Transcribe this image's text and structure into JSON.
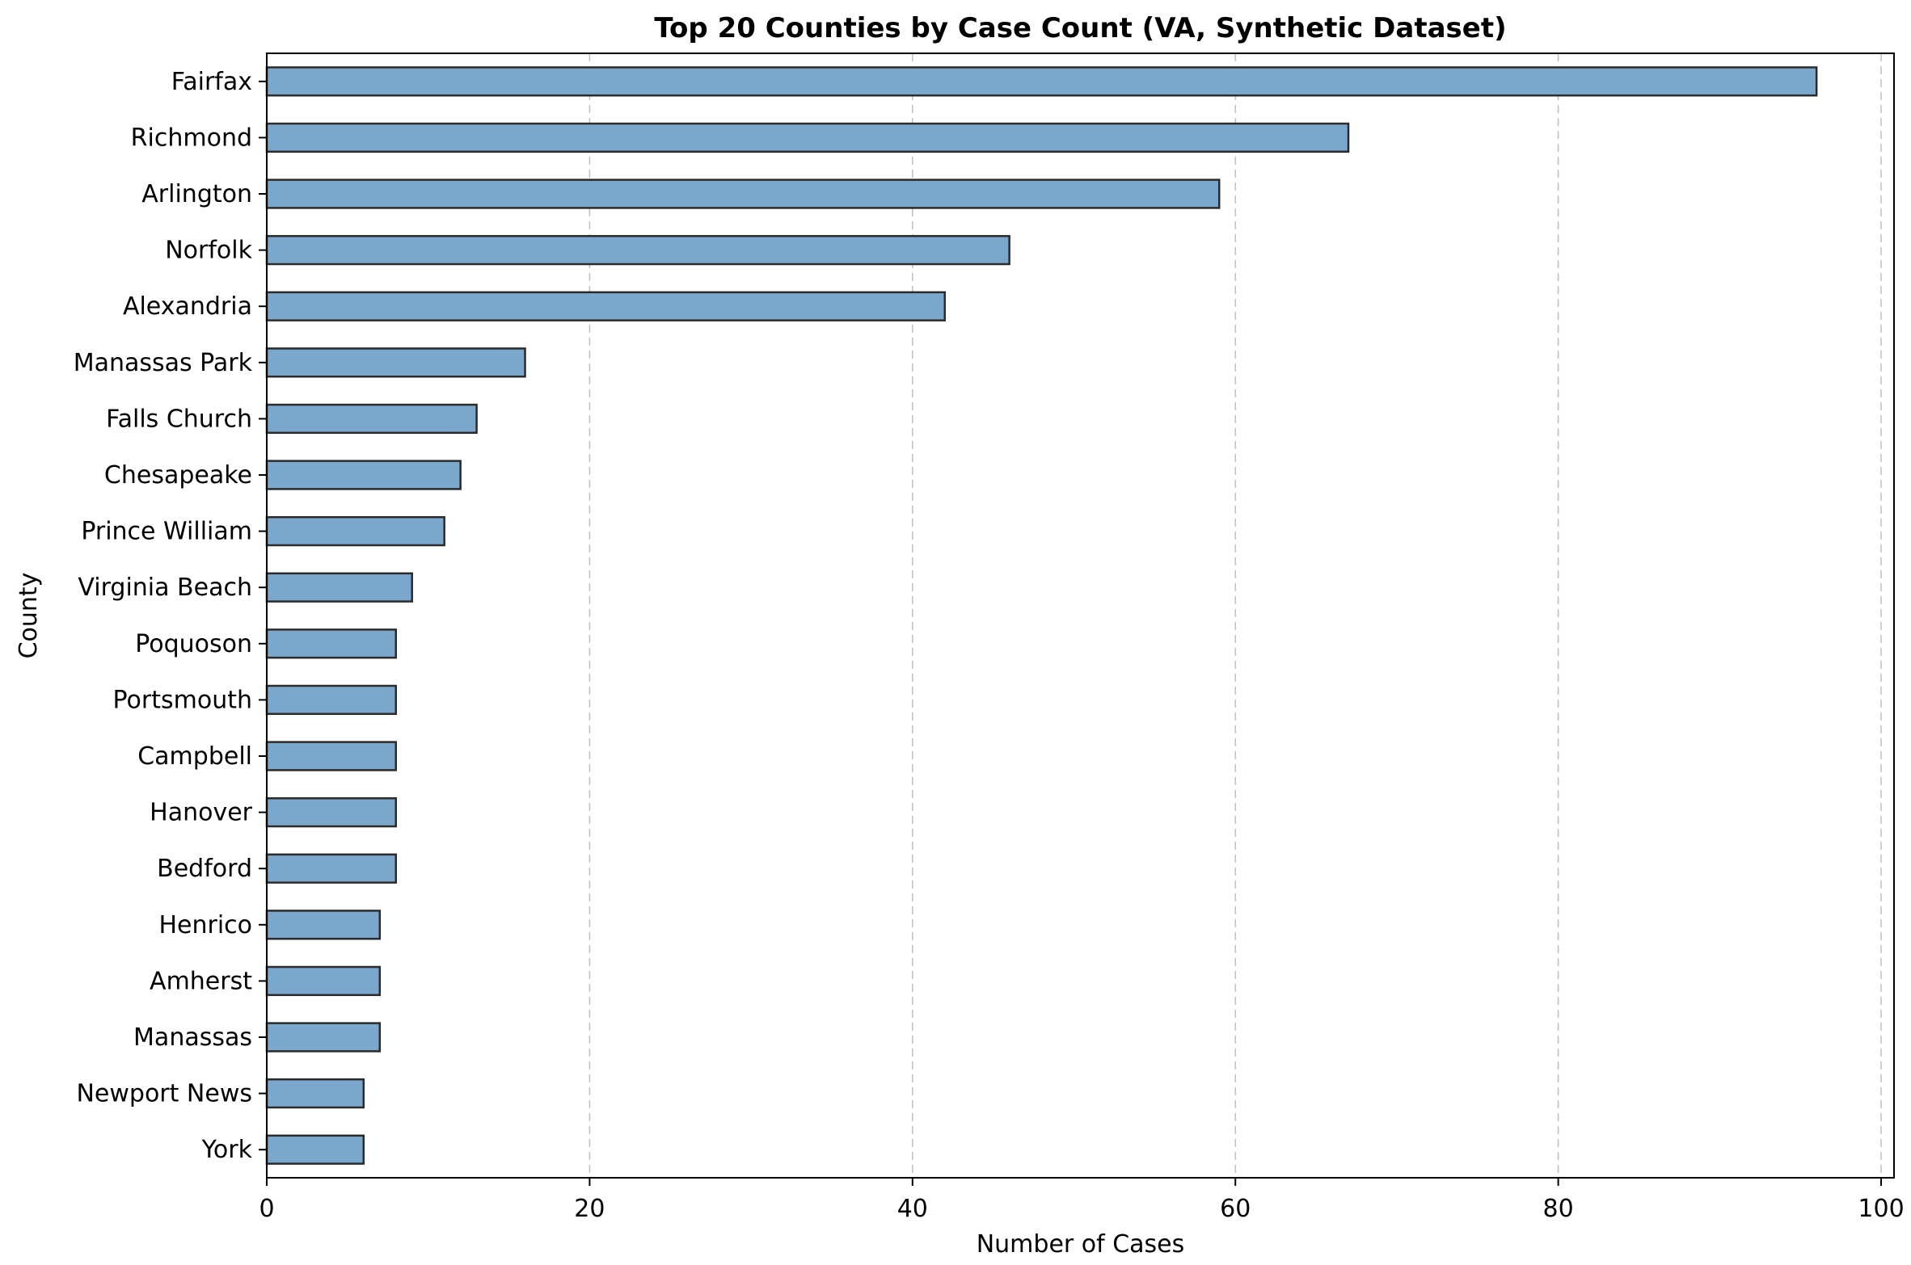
{
  "chart_data": {
    "type": "bar",
    "orientation": "horizontal",
    "title": "Top 20 Counties by Case Count (VA, Synthetic Dataset)",
    "xlabel": "Number of Cases",
    "ylabel": "County",
    "categories": [
      "Fairfax",
      "Richmond",
      "Arlington",
      "Norfolk",
      "Alexandria",
      "Manassas Park",
      "Falls Church",
      "Chesapeake",
      "Prince William",
      "Virginia Beach",
      "Poquoson",
      "Portsmouth",
      "Campbell",
      "Hanover",
      "Bedford",
      "Henrico",
      "Amherst",
      "Manassas",
      "Newport News",
      "York"
    ],
    "values": [
      96,
      67,
      59,
      46,
      42,
      16,
      13,
      12,
      11,
      9,
      8,
      8,
      8,
      8,
      8,
      7,
      7,
      7,
      6,
      6
    ],
    "xlim": [
      0,
      100.8
    ],
    "xticks": [
      0,
      20,
      40,
      60,
      80,
      100
    ],
    "grid": "x-dashed",
    "bar_color": "#7ba7cc",
    "edge_color": "#2b2b2b"
  }
}
